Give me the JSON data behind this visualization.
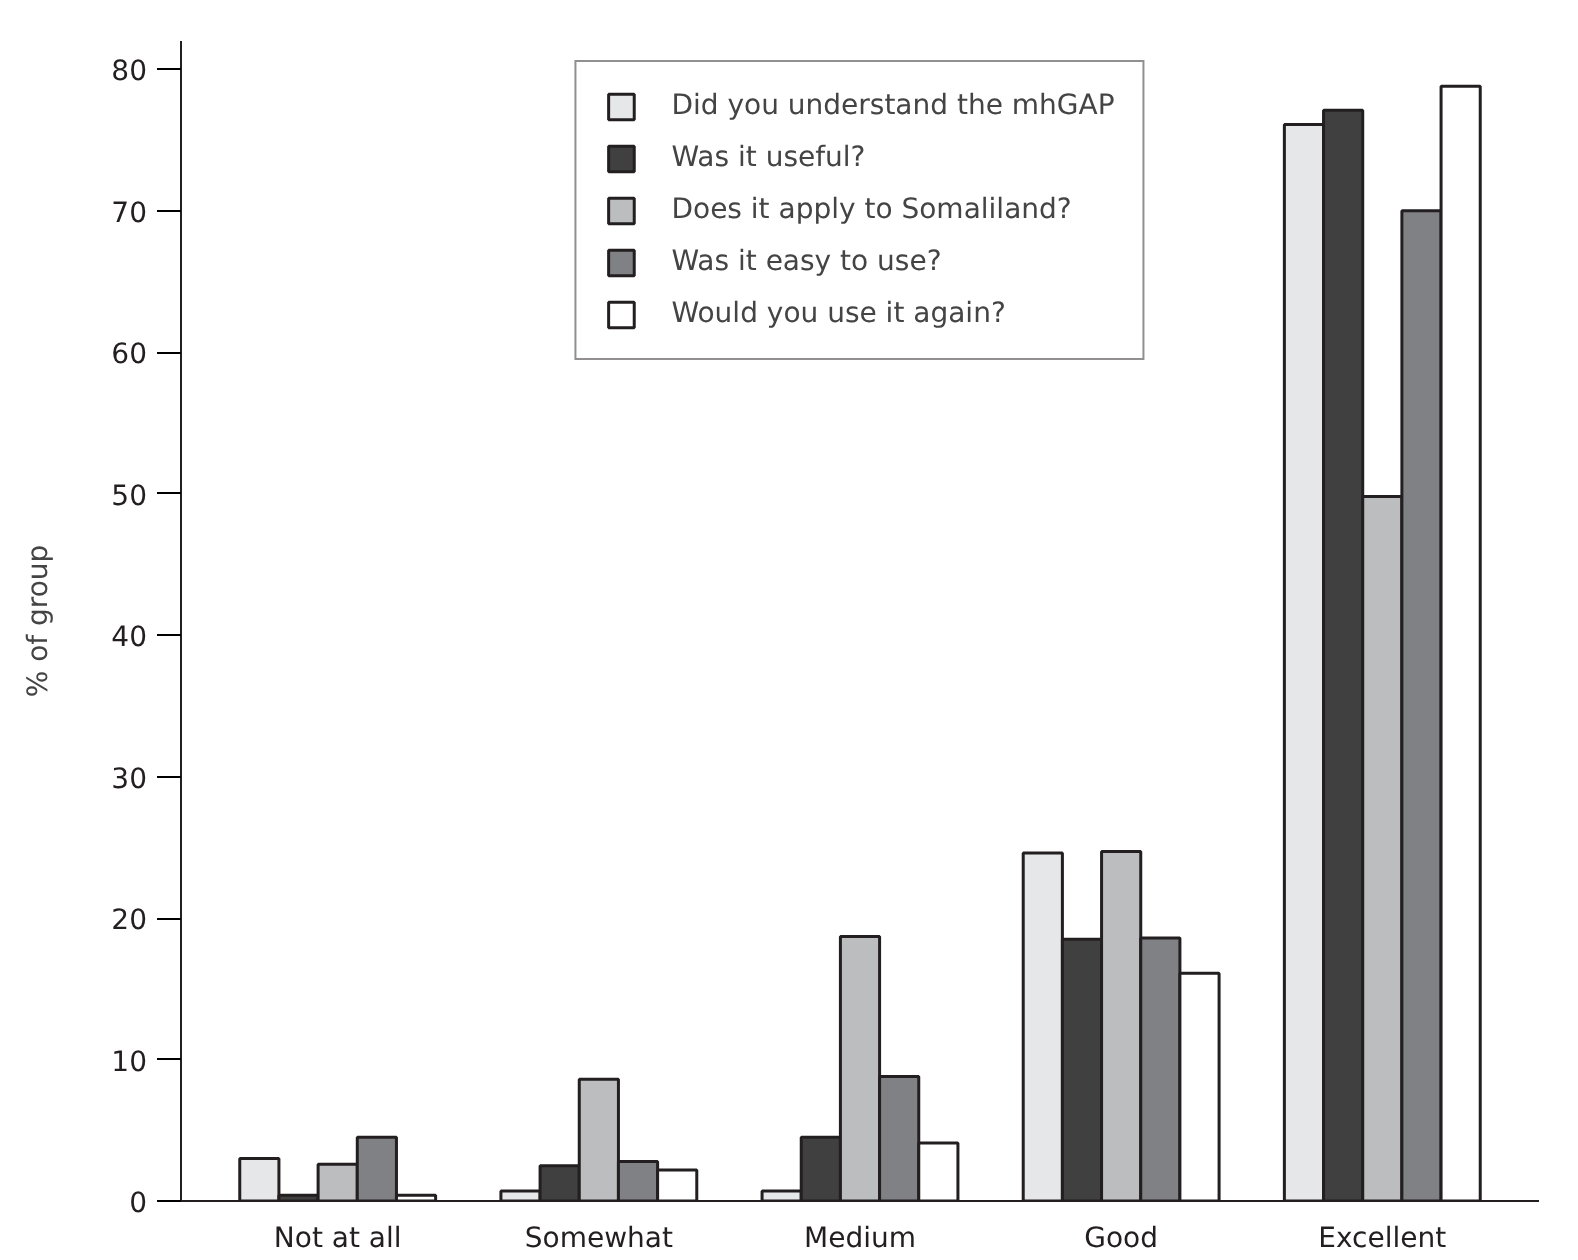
{
  "chart_data": {
    "type": "bar",
    "ylabel": "% of group",
    "categories": [
      "Not at all",
      "Somewhat",
      "Medium",
      "Good",
      "Excellent"
    ],
    "series": [
      {
        "name": "Did you understand the mhGAP",
        "color": "#e6e7e8",
        "values": [
          3.0,
          0.7,
          0.7,
          24.6,
          76.1
        ]
      },
      {
        "name": "Was it useful?",
        "color": "#404041",
        "values": [
          0.4,
          2.5,
          4.5,
          18.5,
          77.1
        ]
      },
      {
        "name": "Does it apply to Somaliland?",
        "color": "#bcbdbf",
        "values": [
          2.6,
          8.6,
          18.7,
          24.7,
          49.8
        ]
      },
      {
        "name": "Was it easy to use?",
        "color": "#808184",
        "values": [
          4.5,
          2.8,
          8.8,
          18.6,
          70.0
        ]
      },
      {
        "name": "Would you use it again?",
        "color": "#ffffff",
        "values": [
          0.4,
          2.2,
          4.1,
          16.1,
          78.8
        ]
      }
    ],
    "ylim": [
      0,
      82
    ],
    "yticks": [
      0,
      10,
      20,
      30,
      40,
      50,
      60,
      70,
      80
    ],
    "grid": false,
    "legend": "top"
  }
}
